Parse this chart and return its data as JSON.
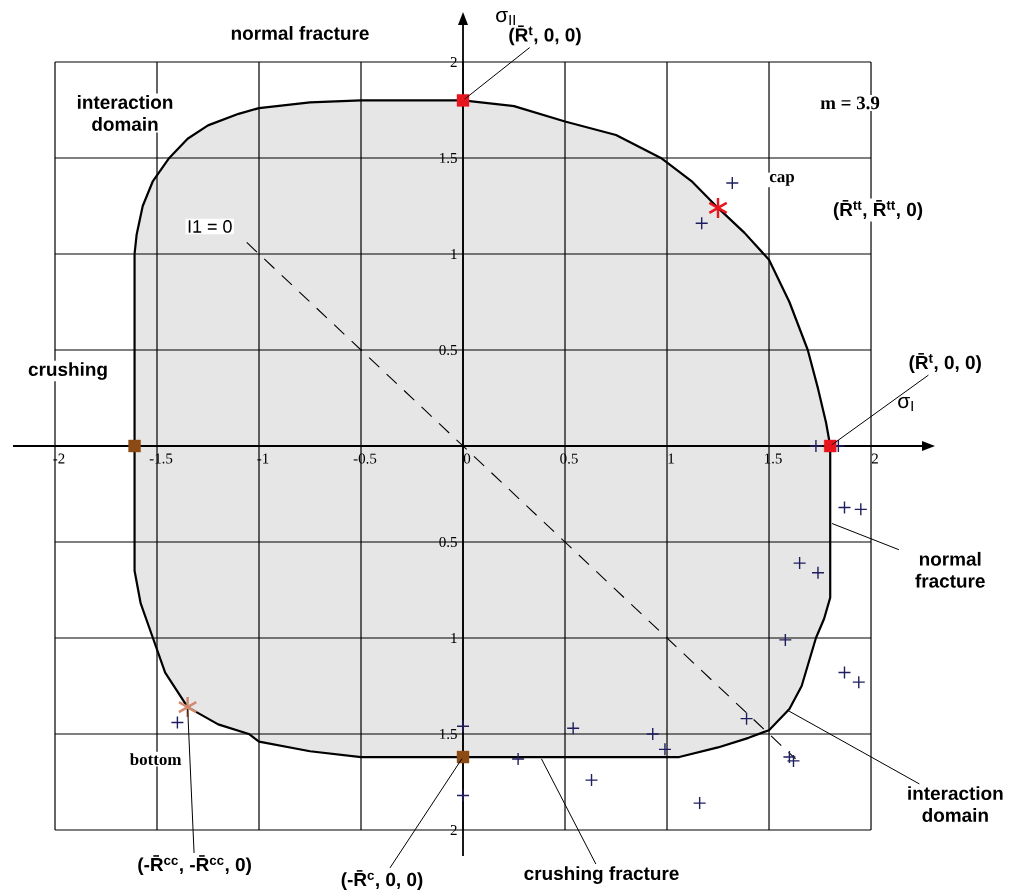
{
  "chart_data": {
    "type": "line",
    "xlabel": "σ$_{I}$",
    "ylabel": "σ$_{II}$",
    "xlim": [
      -2,
      2
    ],
    "ylim": [
      -2,
      2
    ],
    "xticks": [
      -2,
      -1.5,
      -1,
      -0.5,
      0,
      0.5,
      1,
      1.5,
      2
    ],
    "yticks": [
      2,
      1.5,
      1,
      0.5,
      {
        "value": -0.5,
        "label": "0.5"
      },
      {
        "value": -1,
        "label": "1"
      },
      {
        "value": -1.5,
        "label": "1.5"
      },
      {
        "value": -2,
        "label": "2"
      }
    ],
    "grid": true,
    "series": [
      {
        "type": "area",
        "color": "#e6e6e6",
        "x": [
          -1.61,
          -1.61,
          -1.6,
          -1.57,
          -1.52,
          -1.44,
          -1.35,
          -1.25,
          -1.1,
          -1.0,
          -0.75,
          -0.5,
          0,
          0.25,
          0.5,
          0.75,
          0.97,
          1.12,
          1.25,
          1.38,
          1.5,
          1.6,
          1.69,
          1.74,
          1.78,
          1.8
        ],
        "values": [
          0,
          1.0,
          1.1,
          1.25,
          1.38,
          1.5,
          1.6,
          1.67,
          1.73,
          1.76,
          1.79,
          1.8,
          1.8,
          1.77,
          1.69,
          1.62,
          1.5,
          1.38,
          1.24,
          1.11,
          0.97,
          0.75,
          0.5,
          0.3,
          0.12,
          0
        ]
      },
      {
        "type": "area",
        "color": "#e6e6e6",
        "x": [
          -1.61,
          -1.61,
          -1.58,
          -1.52,
          -1.46,
          -1.35,
          -1.2,
          -1.05,
          -1.0,
          -0.75,
          -0.5,
          1.06,
          1.25,
          1.4,
          1.5,
          1.6,
          1.66,
          1.73,
          1.77,
          1.8,
          1.8
        ],
        "values": [
          0,
          -0.65,
          -0.82,
          -1.0,
          -1.18,
          -1.36,
          -1.45,
          -1.5,
          -1.54,
          -1.59,
          -1.62,
          -1.62,
          -1.57,
          -1.52,
          -1.48,
          -1.37,
          -1.25,
          -1.0,
          -0.9,
          -0.79,
          0
        ]
      },
      {
        "name": "I1 = 0",
        "color": "#000000",
        "line_style": "dashed",
        "x": [
          -1.06,
          1.63
        ],
        "values": [
          1.06,
          -1.63
        ]
      },
      {
        "type": "scatter",
        "color": "#1f1f5f",
        "marker": "cross",
        "x": [
          1.32,
          1.17,
          1.73,
          1.84,
          1.87,
          1.95,
          1.65,
          1.74,
          1.58,
          1.87,
          1.94,
          1.39,
          1.6,
          1.62,
          0.54,
          0.93,
          0.99,
          0.63,
          1.16,
          0.27,
          0,
          0,
          -1.4
        ],
        "values": [
          1.37,
          1.16,
          0,
          0,
          -0.32,
          -0.33,
          -0.61,
          -0.66,
          -1.01,
          -1.18,
          -1.23,
          -1.42,
          -1.62,
          -1.64,
          -1.47,
          -1.5,
          -1.58,
          -1.74,
          -1.86,
          -1.63,
          -1.46,
          -1.82,
          -1.44
        ]
      },
      {
        "type": "scatter",
        "color": "#e8141e",
        "marker": "square",
        "x": [
          0,
          1.8
        ],
        "values": [
          1.8,
          0
        ]
      },
      {
        "type": "scatter",
        "color": "#8c4a14",
        "marker": "square",
        "x": [
          -1.61,
          0
        ],
        "values": [
          0,
          -1.62
        ]
      },
      {
        "type": "scatter",
        "name": "cap",
        "color": "#e8141e",
        "x": [
          1.25
        ],
        "values": [
          1.24
        ]
      },
      {
        "type": "scatter",
        "name": "bottom",
        "color": "#d08a70",
        "x": [
          -1.35
        ],
        "values": [
          -1.36
        ]
      }
    ],
    "annotations": [
      "normal fracture",
      "interaction domain",
      "m = 3.9",
      "crushing",
      {
        "text": "(R̄$^{t}$, 0, 0)",
        "x": 0,
        "y": 1.8
      },
      "(R̄$^{tt}$, R̄$^{tt}$, 0)",
      {
        "text": "(R̄$^{t}$, 0, 0)",
        "x": 1.8,
        "y": 0
      },
      {
        "text": "normal fracture",
        "x": 1.8,
        "y": -0.4
      },
      {
        "text": "interaction domain",
        "x": 1.58,
        "y": -1.37
      },
      {
        "text": "crushing fracture",
        "x": 0.38,
        "y": -1.62
      },
      {
        "text": "(-R̄$^{c}$, 0, 0)",
        "x": 0,
        "y": -1.62
      },
      {
        "text": "(-R̄$^{cc}$, -R̄$^{cc}$, 0)",
        "x": -1.35,
        "y": -1.36
      }
    ]
  }
}
